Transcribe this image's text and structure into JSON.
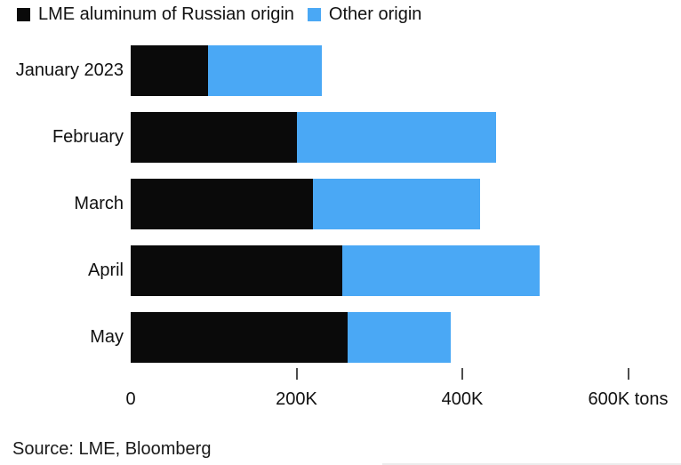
{
  "legend": {
    "items": [
      {
        "name": "russian-origin",
        "label": "LME aluminum of Russian origin",
        "color": "#0a0a0a"
      },
      {
        "name": "other-origin",
        "label": "Other origin",
        "color": "#4aa8f5"
      }
    ]
  },
  "chart_data": {
    "type": "bar",
    "orientation": "horizontal",
    "stacked": true,
    "title": "",
    "categories": [
      "January 2023",
      "February",
      "March",
      "April",
      "May"
    ],
    "series": [
      {
        "name": "LME aluminum of Russian origin",
        "color": "#0a0a0a",
        "values": [
          93,
          200,
          220,
          255,
          262
        ]
      },
      {
        "name": "Other origin",
        "color": "#4aa8f5",
        "values": [
          138,
          241,
          201,
          238,
          124
        ]
      }
    ],
    "unit": "K tons",
    "value_scale": "thousands of tons",
    "x_axis": {
      "ticks": [
        0,
        200,
        400,
        600
      ],
      "tick_labels": [
        "0",
        "200K",
        "400K",
        "600K tons"
      ],
      "range": [
        0,
        660
      ],
      "grid": false
    },
    "legend_position": "top-left"
  },
  "source": "Source: LME, Bloomberg"
}
